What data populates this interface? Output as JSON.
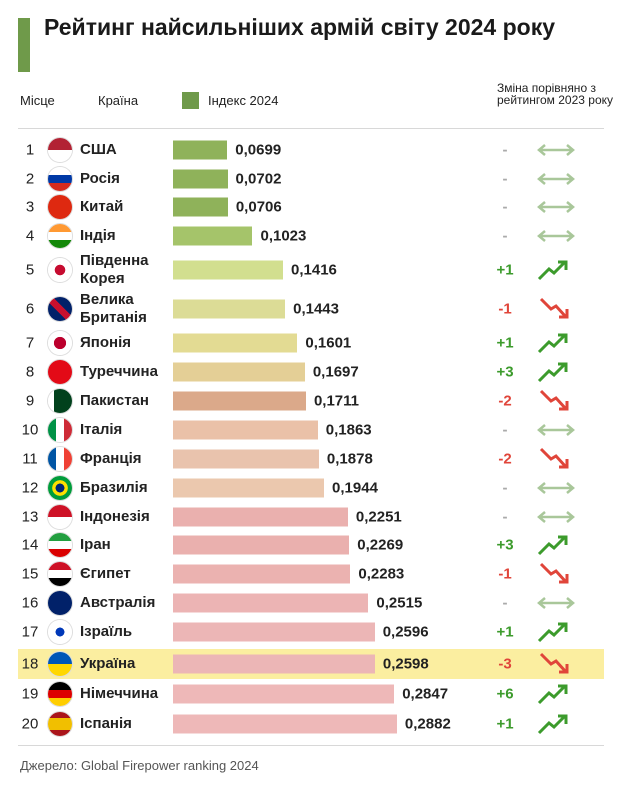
{
  "chart_data": {
    "type": "bar",
    "orientation": "horizontal",
    "title": "Рейтинг найсильніших армій світу 2024 року",
    "headers": {
      "rank": "Місце",
      "country": "Країна",
      "change": "Зміна порівняно з рейтингом 2023 року"
    },
    "series_name": "Індекс 2024",
    "legend_color": "#6f9a4a",
    "ranks": [
      1,
      2,
      3,
      4,
      5,
      6,
      7,
      8,
      9,
      10,
      11,
      12,
      13,
      14,
      15,
      16,
      17,
      18,
      19,
      20
    ],
    "categories": [
      "США",
      "Росія",
      "Китай",
      "Індія",
      "Південна\nКорея",
      "Велика\nБританія",
      "Японія",
      "Туреччина",
      "Пакистан",
      "Італія",
      "Франція",
      "Бразилія",
      "Індонезія",
      "Іран",
      "Єгипет",
      "Австралія",
      "Ізраїль",
      "Україна",
      "Німеччина",
      "Іспанія"
    ],
    "values": [
      0.0699,
      0.0702,
      0.0706,
      0.1023,
      0.1416,
      0.1443,
      0.1601,
      0.1697,
      0.1711,
      0.1863,
      0.1878,
      0.1944,
      0.2251,
      0.2269,
      0.2283,
      0.2515,
      0.2596,
      0.2598,
      0.2847,
      0.2882
    ],
    "value_labels": [
      "0,0699",
      "0,0702",
      "0,0706",
      "0,1023",
      "0,1416",
      "0,1443",
      "0,1601",
      "0,1697",
      "0,1711",
      "0,1863",
      "0,1878",
      "0,1944",
      "0,2251",
      "0,2269",
      "0,2283",
      "0,2515",
      "0,2596",
      "0,2598",
      "0,2847",
      "0,2882"
    ],
    "colors": [
      "#8fb25a",
      "#8fb25a",
      "#8fb25a",
      "#a5c46a",
      "#d2df8f",
      "#dcdc96",
      "#e3db93",
      "#e4cf96",
      "#dba98a",
      "#eac1a8",
      "#e9c3ad",
      "#ebc8ae",
      "#eab0ae",
      "#eab0ae",
      "#ebb2b0",
      "#ecb4b4",
      "#ecb6b6",
      "#ecb6b6",
      "#eeb8b8",
      "#eeb8b8"
    ],
    "changes": [
      "-",
      "-",
      "-",
      "-",
      "+1",
      "-1",
      "+1",
      "+3",
      "-2",
      "-",
      "-2",
      "-",
      "-",
      "+3",
      "-1",
      "-",
      "+1",
      "-3",
      "+6",
      "+1"
    ],
    "highlight": "Україна",
    "source": "Джерело: Global Firepower ranking 2024"
  }
}
